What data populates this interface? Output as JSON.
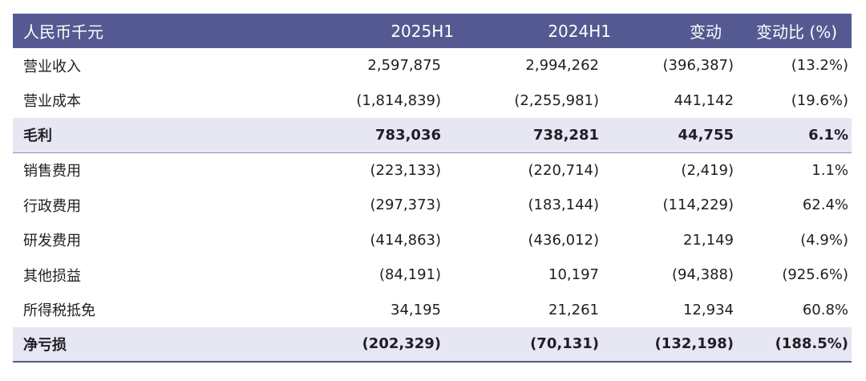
{
  "header": {
    "label": "人民币千元",
    "col_2025": "2025H1",
    "col_2024": "2024H1",
    "col_change": "变动",
    "col_change_pct": "变动比 (%)"
  },
  "rows": [
    {
      "label": "营业收入",
      "y2025": "2,597,875",
      "y2024": "2,994,262",
      "change": "(396,387)",
      "pct": "(13.2%)"
    },
    {
      "label": "营业成本",
      "y2025": "(1,814,839)",
      "y2024": "(2,255,981)",
      "change": "441,142",
      "pct": "(19.6%)"
    },
    {
      "label": "毛利",
      "y2025": "783,036",
      "y2024": "738,281",
      "change": "44,755",
      "pct": "6.1%"
    },
    {
      "label": "销售费用",
      "y2025": "(223,133)",
      "y2024": "(220,714)",
      "change": "(2,419)",
      "pct": "1.1%"
    },
    {
      "label": "行政费用",
      "y2025": "(297,373)",
      "y2024": "(183,144)",
      "change": "(114,229)",
      "pct": "62.4%"
    },
    {
      "label": "研发费用",
      "y2025": "(414,863)",
      "y2024": "(436,012)",
      "change": "21,149",
      "pct": "(4.9%)"
    },
    {
      "label": "其他损益",
      "y2025": "(84,191)",
      "y2024": "10,197",
      "change": "(94,388)",
      "pct": "(925.6%)"
    },
    {
      "label": "所得税抵免",
      "y2025": "34,195",
      "y2024": "21,261",
      "change": "12,934",
      "pct": "60.8%"
    },
    {
      "label": "净亏损",
      "y2025": "(202,329)",
      "y2024": "(70,131)",
      "change": "(132,198)",
      "pct": "(188.5%)"
    }
  ],
  "colors": {
    "header_bg": "#545a91",
    "highlight_bg": "#e6e7f3"
  }
}
